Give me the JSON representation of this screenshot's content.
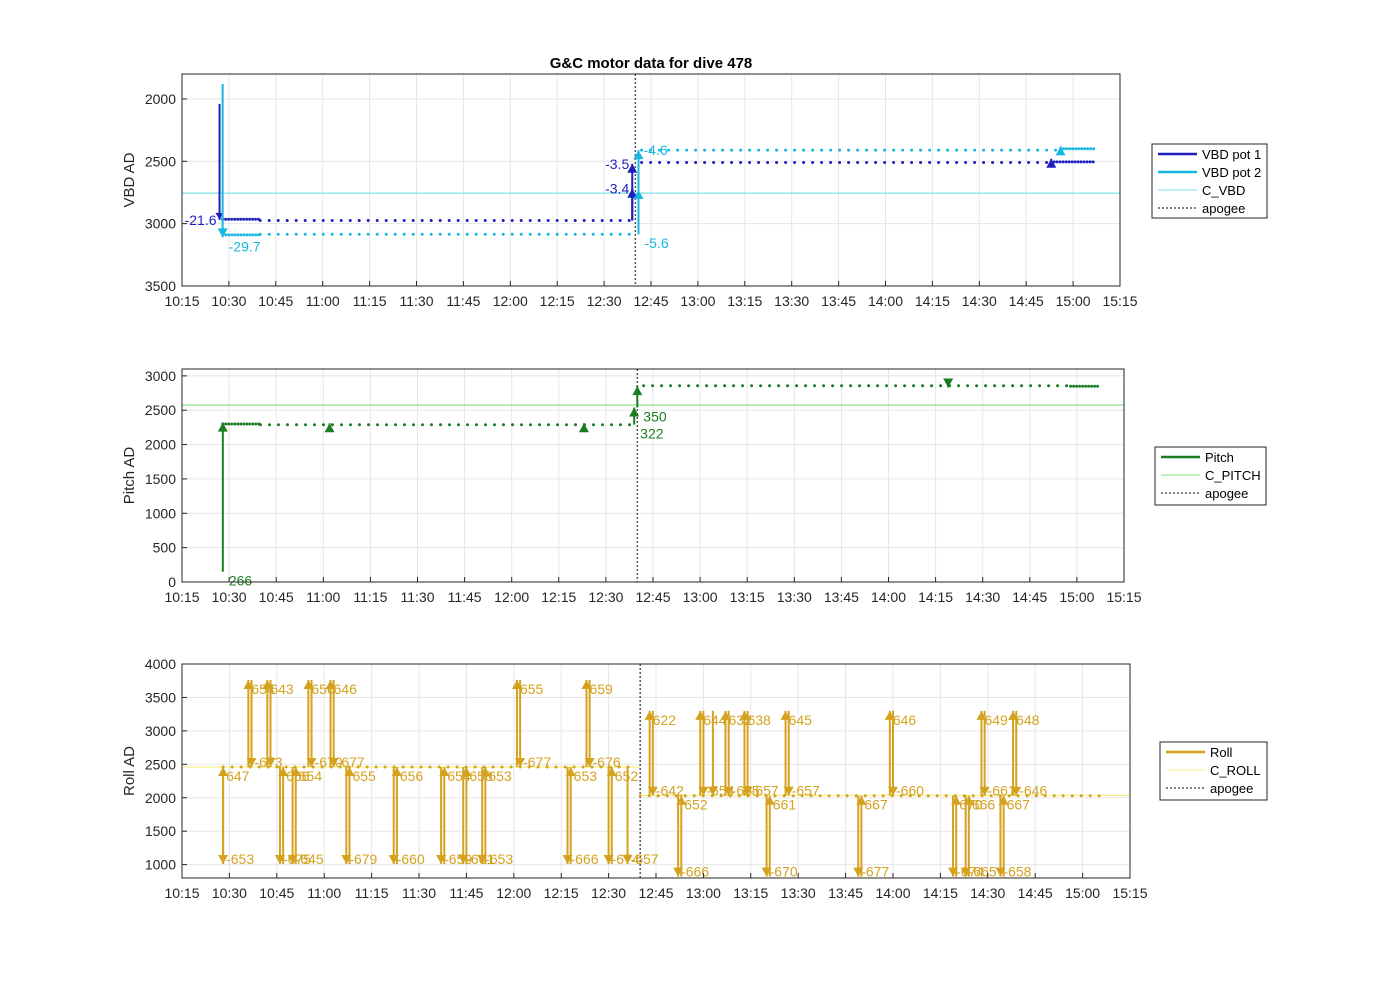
{
  "chart_data": [
    {
      "type": "line",
      "title": "G&C motor data for dive 478",
      "ylabel": "VBD AD",
      "ylim": [
        1800,
        3500
      ],
      "y_reversed": true,
      "yticks": [
        2000,
        2500,
        3000,
        3500
      ],
      "xticks": [
        "10:15",
        "10:30",
        "10:45",
        "11:00",
        "11:15",
        "11:30",
        "11:45",
        "12:00",
        "12:15",
        "12:30",
        "12:45",
        "13:00",
        "13:15",
        "13:30",
        "13:45",
        "14:00",
        "14:15",
        "14:30",
        "14:45",
        "15:00",
        "15:15"
      ],
      "xrange": [
        "10:15",
        "15:15"
      ],
      "apogee": "12:40",
      "grid": true,
      "legend": {
        "placement": "right",
        "entries": [
          {
            "name": "VBD pot 1",
            "color": "#1f1fbf",
            "style": "thick"
          },
          {
            "name": "VBD pot 2",
            "color": "#16b7e0",
            "style": "thick"
          },
          {
            "name": "C_VBD",
            "color": "#7fe0e6",
            "style": "thin"
          },
          {
            "name": "apogee",
            "color": "#555555",
            "style": "dotted"
          }
        ]
      },
      "reference": {
        "name": "C_VBD",
        "y": 2755,
        "color": "#7fe0e6"
      },
      "series": [
        {
          "name": "VBD pot 1",
          "color": "#1f1fbf",
          "segments": [
            {
              "t0": "10:28",
              "t1": "10:40",
              "y": 2965
            },
            {
              "t0": "10:40",
              "t1": "12:39",
              "y": 2975
            },
            {
              "t0": "12:42",
              "t1": "14:53",
              "y": 2510
            },
            {
              "t0": "14:53",
              "t1": "15:07",
              "y": 2505
            }
          ]
        },
        {
          "name": "VBD pot 2",
          "color": "#16b7e0",
          "segments": [
            {
              "t0": "10:29",
              "t1": "10:40",
              "y": 3090
            },
            {
              "t0": "10:40",
              "t1": "12:39",
              "y": 3085
            },
            {
              "t0": "12:42",
              "t1": "14:56",
              "y": 2410
            },
            {
              "t0": "14:56",
              "t1": "15:07",
              "y": 2400
            }
          ]
        }
      ],
      "events": [
        {
          "t": "10:27",
          "y0": 2040,
          "y1": 2970,
          "label": "-21.6",
          "lpos": "left",
          "color": "#1f1fbf",
          "stemOnly": true
        },
        {
          "t": "10:28",
          "y0": 1880,
          "y1": 3110,
          "label": "-29.7",
          "lpos": "below-right",
          "color": "#16b7e0"
        },
        {
          "t": "12:39",
          "y0": 2975,
          "y1": 2520,
          "label": "-3.5",
          "lpos": "left",
          "color": "#1f1fbf"
        },
        {
          "t": "12:39",
          "y0": 2975,
          "y1": 2720,
          "label": "-3.4",
          "lpos": "left",
          "color": "#1f1fbf"
        },
        {
          "t": "12:41",
          "y0": 3085,
          "y1": 2410,
          "label": "-4.6",
          "lpos": "right",
          "color": "#16b7e0"
        },
        {
          "t": "12:41",
          "y0": 3085,
          "y1": 2730,
          "label": "-5.6",
          "lpos": "below-right",
          "color": "#16b7e0"
        },
        {
          "t": "14:53",
          "y0": 2505,
          "y1": 2480,
          "label": "",
          "lpos": "right",
          "color": "#1f1fbf"
        },
        {
          "t": "14:56",
          "y0": 2400,
          "y1": 2380,
          "label": "",
          "lpos": "right",
          "color": "#16b7e0"
        }
      ]
    },
    {
      "type": "line",
      "title": "",
      "ylabel": "Pitch AD",
      "ylim": [
        0,
        3100
      ],
      "y_reversed": false,
      "yticks": [
        0,
        500,
        1000,
        1500,
        2000,
        2500,
        3000
      ],
      "xticks": [
        "10:15",
        "10:30",
        "10:45",
        "11:00",
        "11:15",
        "11:30",
        "11:45",
        "12:00",
        "12:15",
        "12:30",
        "12:45",
        "13:00",
        "13:15",
        "13:30",
        "13:45",
        "14:00",
        "14:15",
        "14:30",
        "14:45",
        "15:00",
        "15:15"
      ],
      "xrange": [
        "10:15",
        "15:15"
      ],
      "apogee": "12:40",
      "grid": true,
      "legend": {
        "placement": "right",
        "entries": [
          {
            "name": "Pitch",
            "color": "#1b7d22",
            "style": "thick"
          },
          {
            "name": "C_PITCH",
            "color": "#7fe07f",
            "style": "thin"
          },
          {
            "name": "apogee",
            "color": "#555555",
            "style": "dotted"
          }
        ]
      },
      "reference": {
        "name": "C_PITCH",
        "y": 2575,
        "color": "#7fe07f"
      },
      "series": [
        {
          "name": "Pitch",
          "color": "#1b7d22",
          "segments": [
            {
              "t0": "10:28",
              "t1": "10:40",
              "y": 2300
            },
            {
              "t0": "10:40",
              "t1": "12:39",
              "y": 2290
            },
            {
              "t0": "12:42",
              "t1": "14:58",
              "y": 2855
            },
            {
              "t0": "14:58",
              "t1": "15:07",
              "y": 2850
            }
          ]
        }
      ],
      "events": [
        {
          "t": "10:28",
          "y0": 150,
          "y1": 2320,
          "label": "266",
          "lpos": "below-right",
          "color": "#1b7d22"
        },
        {
          "t": "11:02",
          "y0": 2280,
          "y1": 2310,
          "label": "",
          "lpos": "right",
          "color": "#1b7d22"
        },
        {
          "t": "12:23",
          "y0": 2280,
          "y1": 2310,
          "label": "",
          "lpos": "right",
          "color": "#1b7d22"
        },
        {
          "t": "12:39",
          "y0": 2290,
          "y1": 2540,
          "label": "322",
          "lpos": "below-right",
          "color": "#1b7d22"
        },
        {
          "t": "12:40",
          "y0": 2540,
          "y1": 2850,
          "label": "350",
          "lpos": "below-right",
          "color": "#1b7d22"
        },
        {
          "t": "14:19",
          "y0": 2860,
          "y1": 2830,
          "label": "",
          "lpos": "right",
          "color": "#1b7d22"
        }
      ]
    },
    {
      "type": "line",
      "title": "",
      "ylabel": "Roll AD",
      "ylim": [
        800,
        4000
      ],
      "y_reversed": false,
      "yticks": [
        1000,
        1500,
        2000,
        2500,
        3000,
        3500,
        4000
      ],
      "xticks": [
        "10:15",
        "10:30",
        "10:45",
        "11:00",
        "11:15",
        "11:30",
        "11:45",
        "12:00",
        "12:15",
        "12:30",
        "12:45",
        "13:00",
        "13:15",
        "13:30",
        "13:45",
        "14:00",
        "14:15",
        "14:30",
        "14:45",
        "15:00",
        "15:15"
      ],
      "xrange": [
        "10:15",
        "15:15"
      ],
      "apogee": "12:40",
      "grid": true,
      "legend": {
        "placement": "right",
        "entries": [
          {
            "name": "Roll",
            "color": "#d4a21f",
            "style": "thick"
          },
          {
            "name": "C_ROLL",
            "color": "#f5f08a",
            "style": "thin"
          },
          {
            "name": "apogee",
            "color": "#555555",
            "style": "dotted"
          }
        ]
      },
      "reference_segments": [
        {
          "t0": "10:15",
          "t1": "12:40",
          "y": 2460,
          "color": "#f5f08a"
        },
        {
          "t0": "12:40",
          "t1": "15:15",
          "y": 2035,
          "color": "#f5f08a"
        }
      ],
      "series": [
        {
          "name": "Roll",
          "color": "#d4a21f",
          "segments": [
            {
              "t0": "10:28",
              "t1": "12:37",
              "y": 2460
            },
            {
              "t0": "12:40",
              "t1": "15:07",
              "y": 2030
            }
          ]
        }
      ],
      "events": [
        {
          "t": "10:28",
          "y0": 2460,
          "y1": 1010,
          "label": "-653",
          "color": "#d4a21f"
        },
        {
          "t": "10:28",
          "y0": 1010,
          "y1": 2460,
          "label": "647",
          "color": "#d4a21f"
        },
        {
          "t": "10:36",
          "y0": 2460,
          "y1": 3760,
          "label": "654",
          "color": "#d4a21f"
        },
        {
          "t": "10:37",
          "y0": 3760,
          "y1": 2460,
          "label": "-673",
          "color": "#d4a21f"
        },
        {
          "t": "10:42",
          "y0": 2460,
          "y1": 3760,
          "label": "643",
          "color": "#d4a21f"
        },
        {
          "t": "10:43",
          "y0": 3760,
          "y1": 2460,
          "label": "",
          "color": "#d4a21f"
        },
        {
          "t": "10:46",
          "y0": 2460,
          "y1": 1010,
          "label": "-675",
          "color": "#d4a21f"
        },
        {
          "t": "10:47",
          "y0": 1010,
          "y1": 2460,
          "label": "656",
          "color": "#d4a21f"
        },
        {
          "t": "10:50",
          "y0": 2460,
          "y1": 1010,
          "label": "-645",
          "color": "#d4a21f"
        },
        {
          "t": "10:51",
          "y0": 1010,
          "y1": 2460,
          "label": "654",
          "color": "#d4a21f"
        },
        {
          "t": "10:55",
          "y0": 2460,
          "y1": 3760,
          "label": "656",
          "color": "#d4a21f"
        },
        {
          "t": "10:56",
          "y0": 3760,
          "y1": 2460,
          "label": "-670",
          "color": "#d4a21f"
        },
        {
          "t": "11:02",
          "y0": 2460,
          "y1": 3760,
          "label": "646",
          "color": "#d4a21f"
        },
        {
          "t": "11:03",
          "y0": 3760,
          "y1": 2460,
          "label": "-677",
          "color": "#d4a21f"
        },
        {
          "t": "11:07",
          "y0": 2460,
          "y1": 1010,
          "label": "-679",
          "color": "#d4a21f"
        },
        {
          "t": "11:08",
          "y0": 1010,
          "y1": 2460,
          "label": "655",
          "color": "#d4a21f"
        },
        {
          "t": "11:22",
          "y0": 2460,
          "y1": 1010,
          "label": "-660",
          "color": "#d4a21f"
        },
        {
          "t": "11:23",
          "y0": 1010,
          "y1": 2460,
          "label": "656",
          "color": "#d4a21f"
        },
        {
          "t": "11:37",
          "y0": 2460,
          "y1": 1010,
          "label": "-659",
          "color": "#d4a21f"
        },
        {
          "t": "11:38",
          "y0": 1010,
          "y1": 2460,
          "label": "654",
          "color": "#d4a21f"
        },
        {
          "t": "11:44",
          "y0": 2460,
          "y1": 1010,
          "label": "-661",
          "color": "#d4a21f"
        },
        {
          "t": "11:45",
          "y0": 1010,
          "y1": 2460,
          "label": "658",
          "color": "#d4a21f"
        },
        {
          "t": "11:50",
          "y0": 2460,
          "y1": 1010,
          "label": "-653",
          "color": "#d4a21f"
        },
        {
          "t": "11:51",
          "y0": 1010,
          "y1": 2460,
          "label": "653",
          "color": "#d4a21f"
        },
        {
          "t": "12:01",
          "y0": 2460,
          "y1": 3760,
          "label": "655",
          "color": "#d4a21f"
        },
        {
          "t": "12:02",
          "y0": 3760,
          "y1": 2460,
          "label": "-677",
          "color": "#d4a21f"
        },
        {
          "t": "12:17",
          "y0": 2460,
          "y1": 1010,
          "label": "-666",
          "color": "#d4a21f"
        },
        {
          "t": "12:18",
          "y0": 1010,
          "y1": 2460,
          "label": "653",
          "color": "#d4a21f"
        },
        {
          "t": "12:23",
          "y0": 2460,
          "y1": 3760,
          "label": "659",
          "color": "#d4a21f"
        },
        {
          "t": "12:24",
          "y0": 3760,
          "y1": 2460,
          "label": "-676",
          "color": "#d4a21f"
        },
        {
          "t": "12:30",
          "y0": 2460,
          "y1": 1010,
          "label": "-674",
          "color": "#d4a21f"
        },
        {
          "t": "12:31",
          "y0": 1010,
          "y1": 2460,
          "label": "652",
          "color": "#d4a21f"
        },
        {
          "t": "12:36",
          "y0": 2460,
          "y1": 1010,
          "label": "-657",
          "color": "#d4a21f"
        },
        {
          "t": "12:43",
          "y0": 2030,
          "y1": 3300,
          "label": "622",
          "color": "#d4a21f"
        },
        {
          "t": "12:44",
          "y0": 3300,
          "y1": 2030,
          "label": "-642",
          "color": "#d4a21f"
        },
        {
          "t": "12:52",
          "y0": 2030,
          "y1": 820,
          "label": "-666",
          "color": "#d4a21f"
        },
        {
          "t": "12:53",
          "y0": 820,
          "y1": 2030,
          "label": "652",
          "color": "#d4a21f"
        },
        {
          "t": "12:59",
          "y0": 2030,
          "y1": 3300,
          "label": "644",
          "color": "#d4a21f"
        },
        {
          "t": "13:00",
          "y0": 3300,
          "y1": 2030,
          "label": "-654",
          "color": "#d4a21f"
        },
        {
          "t": "13:03",
          "y0": 3300,
          "y1": 2030,
          "label": "",
          "color": "#d4a21f"
        },
        {
          "t": "13:07",
          "y0": 2030,
          "y1": 3300,
          "label": "632",
          "color": "#d4a21f"
        },
        {
          "t": "13:08",
          "y0": 3300,
          "y1": 2030,
          "label": "-655",
          "color": "#d4a21f"
        },
        {
          "t": "13:13",
          "y0": 2030,
          "y1": 3300,
          "label": "638",
          "color": "#d4a21f"
        },
        {
          "t": "13:14",
          "y0": 3300,
          "y1": 2030,
          "label": "-657",
          "color": "#d4a21f"
        },
        {
          "t": "13:20",
          "y0": 2030,
          "y1": 820,
          "label": "-670",
          "color": "#d4a21f"
        },
        {
          "t": "13:21",
          "y0": 820,
          "y1": 2030,
          "label": "661",
          "color": "#d4a21f"
        },
        {
          "t": "13:26",
          "y0": 2030,
          "y1": 3300,
          "label": "645",
          "color": "#d4a21f"
        },
        {
          "t": "13:27",
          "y0": 3300,
          "y1": 2030,
          "label": "-657",
          "color": "#d4a21f"
        },
        {
          "t": "13:49",
          "y0": 2030,
          "y1": 820,
          "label": "-677",
          "color": "#d4a21f"
        },
        {
          "t": "13:50",
          "y0": 820,
          "y1": 2030,
          "label": "667",
          "color": "#d4a21f"
        },
        {
          "t": "13:59",
          "y0": 2030,
          "y1": 3300,
          "label": "646",
          "color": "#d4a21f"
        },
        {
          "t": "14:00",
          "y0": 3300,
          "y1": 2030,
          "label": "-660",
          "color": "#d4a21f"
        },
        {
          "t": "14:19",
          "y0": 2030,
          "y1": 820,
          "label": "-674",
          "color": "#d4a21f"
        },
        {
          "t": "14:20",
          "y0": 820,
          "y1": 2030,
          "label": "670",
          "color": "#d4a21f"
        },
        {
          "t": "14:23",
          "y0": 2030,
          "y1": 820,
          "label": "-665",
          "color": "#d4a21f"
        },
        {
          "t": "14:24",
          "y0": 820,
          "y1": 2030,
          "label": "666",
          "color": "#d4a21f"
        },
        {
          "t": "14:28",
          "y0": 2030,
          "y1": 3300,
          "label": "649",
          "color": "#d4a21f"
        },
        {
          "t": "14:29",
          "y0": 3300,
          "y1": 2030,
          "label": "-661",
          "color": "#d4a21f"
        },
        {
          "t": "14:34",
          "y0": 2030,
          "y1": 820,
          "label": "-658",
          "color": "#d4a21f"
        },
        {
          "t": "14:35",
          "y0": 820,
          "y1": 2030,
          "label": "667",
          "color": "#d4a21f"
        },
        {
          "t": "14:38",
          "y0": 2030,
          "y1": 3300,
          "label": "648",
          "color": "#d4a21f"
        },
        {
          "t": "14:39",
          "y0": 3300,
          "y1": 2030,
          "label": "-646",
          "color": "#d4a21f"
        }
      ]
    }
  ]
}
